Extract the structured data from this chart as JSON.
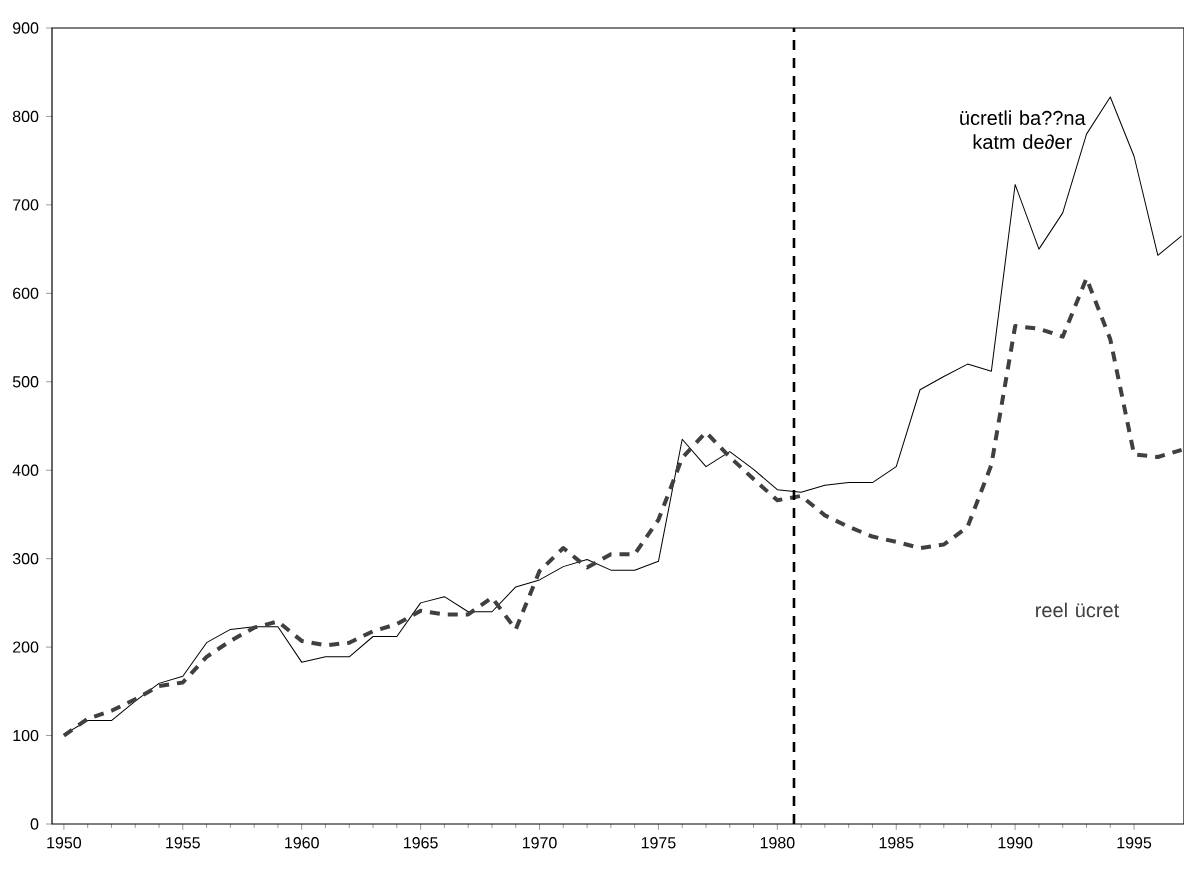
{
  "chart_data": {
    "type": "line",
    "x": [
      1950,
      1951,
      1952,
      1953,
      1954,
      1955,
      1956,
      1957,
      1958,
      1959,
      1960,
      1961,
      1962,
      1963,
      1964,
      1965,
      1966,
      1967,
      1968,
      1969,
      1970,
      1971,
      1972,
      1973,
      1974,
      1975,
      1976,
      1977,
      1978,
      1979,
      1980,
      1981,
      1982,
      1983,
      1984,
      1985,
      1986,
      1987,
      1988,
      1989,
      1990,
      1991,
      1992,
      1993,
      1994,
      1995,
      1996,
      1997
    ],
    "series": [
      {
        "name": "ücretli ba??na katm de∂er",
        "color": "#000000",
        "line_style": "solid",
        "values": [
          101,
          117,
          117,
          139,
          159,
          167,
          205,
          220,
          223,
          223,
          183,
          189,
          189,
          212,
          212,
          250,
          257,
          240,
          240,
          268,
          276,
          291,
          299,
          287,
          287,
          297,
          435,
          404,
          421,
          401,
          378,
          375,
          383,
          386,
          386,
          404,
          491,
          506,
          520,
          512,
          723,
          650,
          691,
          780,
          822,
          755,
          643,
          665
        ]
      },
      {
        "name": "reel ücret",
        "color": "#404040",
        "line_style": "dashed",
        "values": [
          100,
          119,
          128,
          141,
          156,
          160,
          189,
          207,
          222,
          229,
          207,
          202,
          205,
          218,
          226,
          241,
          237,
          237,
          256,
          220,
          286,
          312,
          290,
          305,
          305,
          344,
          414,
          443,
          415,
          390,
          366,
          371,
          349,
          336,
          325,
          319,
          312,
          316,
          336,
          406,
          563,
          560,
          551,
          617,
          548,
          418,
          415,
          423
        ]
      }
    ],
    "xlim": [
      1949.5,
      1997.1
    ],
    "xticks": [
      1950,
      1955,
      1960,
      1965,
      1970,
      1975,
      1980,
      1985,
      1990,
      1995
    ],
    "ylim": [
      0,
      900
    ],
    "yticks": [
      0,
      100,
      200,
      300,
      400,
      500,
      600,
      700,
      800,
      900
    ],
    "ref_lines": [
      {
        "axis": "x",
        "value": 1980.7,
        "color": "#000000",
        "line_style": "dashed"
      }
    ],
    "grid": false,
    "legend": false,
    "marker": "none"
  }
}
